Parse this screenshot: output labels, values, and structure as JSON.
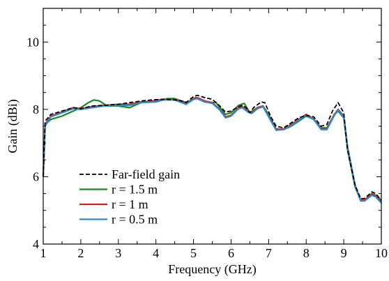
{
  "chart_data": {
    "type": "line",
    "title": "",
    "xlabel": "Frequency (GHz)",
    "ylabel": "Gain (dBi)",
    "xlim": [
      1,
      10
    ],
    "ylim": [
      4,
      11
    ],
    "xticks": [
      "1",
      "2",
      "3",
      "4",
      "5",
      "6",
      "7",
      "8",
      "9",
      "10"
    ],
    "yticks": [
      "4",
      "6",
      "8",
      "10"
    ],
    "grid": false,
    "legend_position": "bottom-left",
    "series": [
      {
        "name": "Far-field gain",
        "color": "#000000",
        "dash": "dashed",
        "points": [
          [
            1.0,
            6.0
          ],
          [
            1.05,
            7.65
          ],
          [
            1.2,
            7.85
          ],
          [
            1.5,
            7.95
          ],
          [
            1.8,
            8.05
          ],
          [
            2.0,
            8.02
          ],
          [
            2.3,
            8.1
          ],
          [
            2.6,
            8.12
          ],
          [
            3.0,
            8.15
          ],
          [
            3.3,
            8.2
          ],
          [
            3.6,
            8.25
          ],
          [
            3.9,
            8.28
          ],
          [
            4.2,
            8.3
          ],
          [
            4.5,
            8.28
          ],
          [
            4.7,
            8.25
          ],
          [
            4.8,
            8.2
          ],
          [
            5.0,
            8.38
          ],
          [
            5.1,
            8.42
          ],
          [
            5.3,
            8.35
          ],
          [
            5.5,
            8.3
          ],
          [
            5.7,
            8.1
          ],
          [
            5.85,
            7.92
          ],
          [
            6.0,
            7.95
          ],
          [
            6.2,
            8.08
          ],
          [
            6.3,
            8.12
          ],
          [
            6.4,
            8.05
          ],
          [
            6.5,
            7.9
          ],
          [
            6.6,
            8.05
          ],
          [
            6.8,
            8.22
          ],
          [
            6.9,
            8.2
          ],
          [
            7.05,
            7.8
          ],
          [
            7.2,
            7.5
          ],
          [
            7.4,
            7.45
          ],
          [
            7.6,
            7.6
          ],
          [
            7.8,
            7.75
          ],
          [
            8.0,
            7.82
          ],
          [
            8.2,
            7.78
          ],
          [
            8.4,
            7.5
          ],
          [
            8.55,
            7.55
          ],
          [
            8.7,
            7.95
          ],
          [
            8.85,
            8.2
          ],
          [
            9.0,
            7.9
          ],
          [
            9.1,
            6.8
          ],
          [
            9.3,
            5.75
          ],
          [
            9.45,
            5.35
          ],
          [
            9.55,
            5.35
          ],
          [
            9.75,
            5.55
          ],
          [
            9.85,
            5.5
          ],
          [
            10.0,
            5.3
          ]
        ]
      },
      {
        "name": "r = 1.5 m",
        "color": "#1a8a1a",
        "dash": "solid",
        "points": [
          [
            1.0,
            6.05
          ],
          [
            1.05,
            7.55
          ],
          [
            1.2,
            7.7
          ],
          [
            1.5,
            7.8
          ],
          [
            1.8,
            7.95
          ],
          [
            2.0,
            8.05
          ],
          [
            2.2,
            8.2
          ],
          [
            2.35,
            8.28
          ],
          [
            2.5,
            8.25
          ],
          [
            2.7,
            8.1
          ],
          [
            3.0,
            8.1
          ],
          [
            3.3,
            8.05
          ],
          [
            3.6,
            8.2
          ],
          [
            4.0,
            8.22
          ],
          [
            4.3,
            8.32
          ],
          [
            4.5,
            8.32
          ],
          [
            4.75,
            8.22
          ],
          [
            4.9,
            8.22
          ],
          [
            5.05,
            8.35
          ],
          [
            5.3,
            8.22
          ],
          [
            5.6,
            8.2
          ],
          [
            5.85,
            7.85
          ],
          [
            6.0,
            7.9
          ],
          [
            6.2,
            8.12
          ],
          [
            6.35,
            8.18
          ],
          [
            6.5,
            7.9
          ],
          [
            6.7,
            8.05
          ],
          [
            6.85,
            8.1
          ],
          [
            7.0,
            7.85
          ],
          [
            7.2,
            7.42
          ],
          [
            7.4,
            7.4
          ],
          [
            7.6,
            7.5
          ],
          [
            7.8,
            7.65
          ],
          [
            8.0,
            7.8
          ],
          [
            8.2,
            7.7
          ],
          [
            8.4,
            7.45
          ],
          [
            8.55,
            7.45
          ],
          [
            8.75,
            7.85
          ],
          [
            8.85,
            7.95
          ],
          [
            9.0,
            7.75
          ],
          [
            9.1,
            6.8
          ],
          [
            9.3,
            5.7
          ],
          [
            9.45,
            5.3
          ],
          [
            9.55,
            5.3
          ],
          [
            9.75,
            5.5
          ],
          [
            9.85,
            5.45
          ],
          [
            10.0,
            5.3
          ]
        ]
      },
      {
        "name": "r = 1 m",
        "color": "#e01a1a",
        "dash": "solid",
        "points": [
          [
            1.0,
            6.02
          ],
          [
            1.05,
            7.55
          ],
          [
            1.2,
            7.8
          ],
          [
            1.5,
            7.92
          ],
          [
            1.8,
            8.05
          ],
          [
            2.0,
            8.02
          ],
          [
            2.3,
            8.08
          ],
          [
            2.6,
            8.12
          ],
          [
            3.0,
            8.15
          ],
          [
            3.3,
            8.15
          ],
          [
            3.6,
            8.22
          ],
          [
            3.9,
            8.25
          ],
          [
            4.2,
            8.3
          ],
          [
            4.5,
            8.3
          ],
          [
            4.8,
            8.18
          ],
          [
            5.0,
            8.32
          ],
          [
            5.1,
            8.35
          ],
          [
            5.3,
            8.25
          ],
          [
            5.5,
            8.2
          ],
          [
            5.7,
            8.0
          ],
          [
            5.85,
            7.78
          ],
          [
            6.0,
            7.82
          ],
          [
            6.2,
            8.05
          ],
          [
            6.3,
            8.08
          ],
          [
            6.45,
            7.95
          ],
          [
            6.55,
            7.9
          ],
          [
            6.7,
            8.05
          ],
          [
            6.85,
            8.1
          ],
          [
            7.0,
            7.8
          ],
          [
            7.2,
            7.4
          ],
          [
            7.4,
            7.42
          ],
          [
            7.6,
            7.55
          ],
          [
            7.8,
            7.7
          ],
          [
            8.0,
            7.85
          ],
          [
            8.2,
            7.72
          ],
          [
            8.4,
            7.42
          ],
          [
            8.55,
            7.42
          ],
          [
            8.75,
            7.85
          ],
          [
            8.85,
            8.0
          ],
          [
            9.0,
            7.8
          ],
          [
            9.1,
            6.9
          ],
          [
            9.3,
            5.75
          ],
          [
            9.45,
            5.3
          ],
          [
            9.55,
            5.3
          ],
          [
            9.75,
            5.48
          ],
          [
            9.85,
            5.42
          ],
          [
            10.0,
            5.25
          ]
        ]
      },
      {
        "name": "r = 0.5 m",
        "color": "#2a8ad0",
        "dash": "solid",
        "points": [
          [
            1.0,
            6.0
          ],
          [
            1.05,
            7.5
          ],
          [
            1.2,
            7.78
          ],
          [
            1.5,
            7.9
          ],
          [
            1.8,
            8.02
          ],
          [
            2.0,
            8.0
          ],
          [
            2.3,
            8.05
          ],
          [
            2.6,
            8.1
          ],
          [
            3.0,
            8.12
          ],
          [
            3.3,
            8.12
          ],
          [
            3.6,
            8.2
          ],
          [
            3.9,
            8.22
          ],
          [
            4.2,
            8.28
          ],
          [
            4.5,
            8.28
          ],
          [
            4.8,
            8.15
          ],
          [
            5.0,
            8.3
          ],
          [
            5.1,
            8.32
          ],
          [
            5.3,
            8.22
          ],
          [
            5.5,
            8.18
          ],
          [
            5.7,
            7.98
          ],
          [
            5.85,
            7.75
          ],
          [
            6.0,
            7.8
          ],
          [
            6.2,
            8.02
          ],
          [
            6.3,
            8.05
          ],
          [
            6.45,
            7.92
          ],
          [
            6.55,
            7.88
          ],
          [
            6.7,
            8.02
          ],
          [
            6.85,
            8.08
          ],
          [
            7.0,
            7.78
          ],
          [
            7.2,
            7.38
          ],
          [
            7.4,
            7.4
          ],
          [
            7.6,
            7.52
          ],
          [
            7.8,
            7.68
          ],
          [
            8.0,
            7.82
          ],
          [
            8.2,
            7.7
          ],
          [
            8.4,
            7.4
          ],
          [
            8.55,
            7.4
          ],
          [
            8.75,
            7.82
          ],
          [
            8.85,
            7.98
          ],
          [
            9.0,
            7.78
          ],
          [
            9.1,
            6.88
          ],
          [
            9.3,
            5.72
          ],
          [
            9.45,
            5.28
          ],
          [
            9.55,
            5.28
          ],
          [
            9.75,
            5.45
          ],
          [
            9.85,
            5.4
          ],
          [
            10.0,
            5.22
          ]
        ]
      }
    ]
  }
}
